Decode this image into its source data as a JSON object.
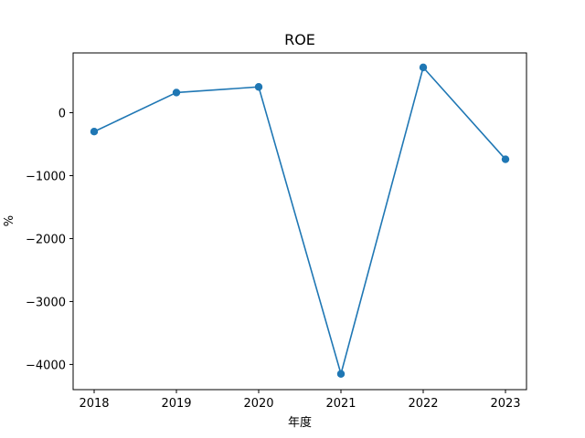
{
  "chart_data": {
    "type": "line",
    "title": "ROE",
    "xlabel": "年度",
    "ylabel": "%",
    "categories": [
      "2018",
      "2019",
      "2020",
      "2021",
      "2022",
      "2023"
    ],
    "series": [
      {
        "values": [
          -300,
          320,
          410,
          -4150,
          720,
          -740
        ]
      }
    ],
    "ylim": [
      -4400,
      950
    ],
    "yticks": [
      0,
      -1000,
      -2000,
      -3000,
      -4000
    ],
    "ytick_labels": [
      "0",
      "−1000",
      "−2000",
      "−3000",
      "−4000"
    ],
    "grid": false,
    "legend": "none",
    "colors": {
      "line": "#1f77b4",
      "marker": "#1f77b4",
      "axes": "#000000"
    }
  }
}
